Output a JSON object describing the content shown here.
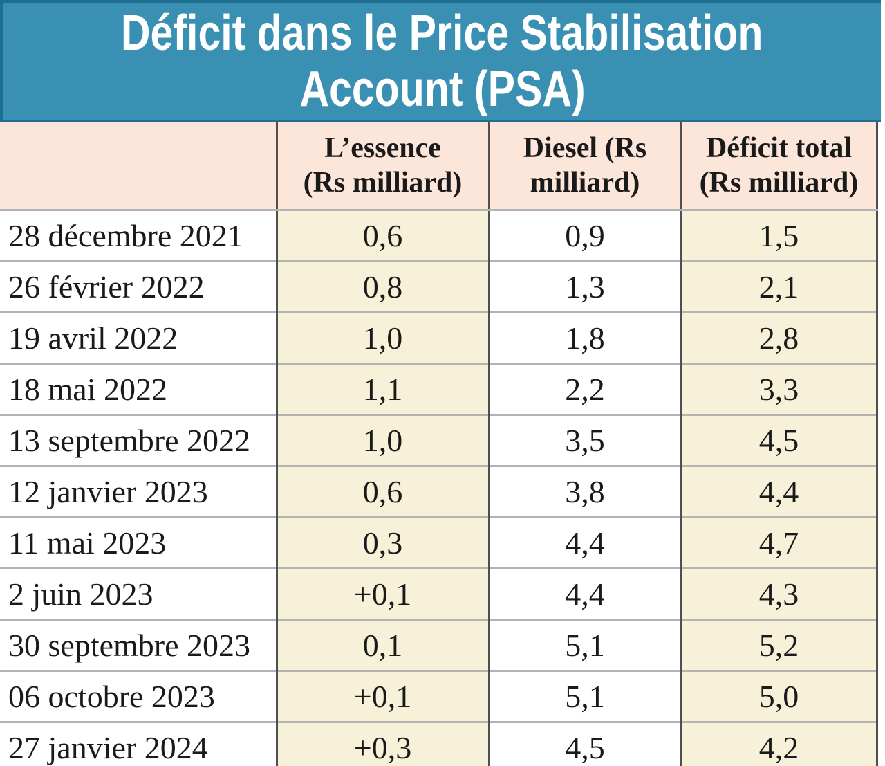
{
  "title": {
    "line1": "Déficit dans le Price Stabilisation",
    "line2": "Account (PSA)"
  },
  "table": {
    "headers": [
      {
        "line1": "",
        "line2": ""
      },
      {
        "line1": "L’essence",
        "line2": "(Rs milliard)"
      },
      {
        "line1": "Diesel (Rs",
        "line2": "milliard)"
      },
      {
        "line1": "Déficit total",
        "line2": "(Rs milliard)"
      }
    ]
  },
  "chart_data": {
    "type": "table",
    "title": "Déficit dans le Price Stabilisation Account (PSA)",
    "columns": [
      "",
      "L’essence (Rs milliard)",
      "Diesel (Rs milliard)",
      "Déficit total (Rs milliard)"
    ],
    "rows": [
      [
        "28 décembre 2021",
        "0,6",
        "0,9",
        "1,5"
      ],
      [
        "26 février 2022",
        "0,8",
        "1,3",
        "2,1"
      ],
      [
        "19 avril 2022",
        "1,0",
        "1,8",
        "2,8"
      ],
      [
        "18 mai 2022",
        "1,1",
        "2,2",
        "3,3"
      ],
      [
        "13 septembre 2022",
        "1,0",
        "3,5",
        "4,5"
      ],
      [
        "12 janvier 2023",
        "0,6",
        "3,8",
        "4,4"
      ],
      [
        "11 mai 2023",
        "0,3",
        "4,4",
        "4,7"
      ],
      [
        "2 juin 2023",
        "+0,1",
        "4,4",
        "4,3"
      ],
      [
        "30 septembre 2023",
        "0,1",
        "5,1",
        "5,2"
      ],
      [
        "06 octobre 2023",
        "+0,1",
        "5,1",
        "5,0"
      ],
      [
        "27 janvier 2024",
        "+0,3",
        "4,5",
        "4,2"
      ]
    ]
  },
  "colors": {
    "banner_bg": "#3a90b2",
    "banner_edge": "#1d6e90",
    "header_bg": "#fbe6d9",
    "stripe_bg": "#f6f1d8",
    "column_divider": "#4f4f4f",
    "row_divider": "#b3b3b3",
    "title_text": "#ffffff",
    "body_text": "#1a1a1a"
  }
}
